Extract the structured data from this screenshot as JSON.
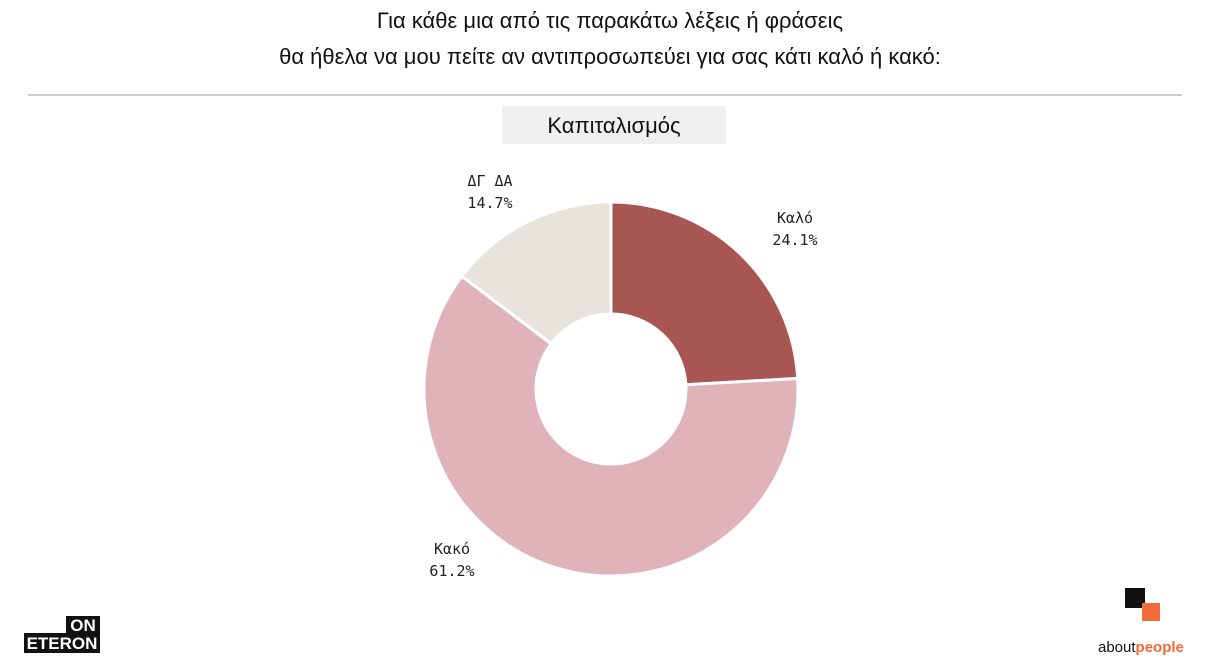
{
  "chart_data": {
    "type": "donut",
    "title": [
      "Για κάθε μια από τις παρακάτω λέξεις ή φράσεις",
      "θα ήθελα να μου πείτε αν αντιπροσωπεύει για σας κάτι καλό ή κακό:"
    ],
    "subtitle": "Καπιταλισμός",
    "categories": [
      "Καλό",
      "Κακό",
      "ΔΓ ΔΑ"
    ],
    "values": [
      24.1,
      61.2,
      14.7
    ],
    "value_labels": [
      "24.1%",
      "61.2%",
      "14.7%"
    ],
    "colors": [
      "#a85652",
      "#e0b3ba",
      "#e8e3dd"
    ]
  },
  "logos": {
    "left": [
      "ON",
      "ETERON"
    ],
    "right": [
      "about",
      "people"
    ]
  }
}
